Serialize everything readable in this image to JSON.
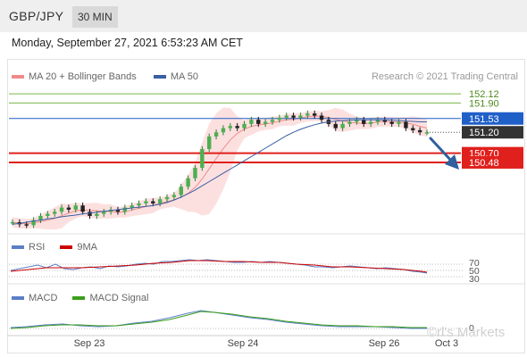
{
  "header": {
    "pair": "GBP/JPY",
    "timeframe": "30 MIN"
  },
  "datetime": "Monday, September 27, 2021 6:53:23 AM CET",
  "copyright": "Research © 2021 Trading Central",
  "legend_main": [
    {
      "label": "MA 20 + Bollinger Bands",
      "color": "#f08a8a"
    },
    {
      "label": "MA 50",
      "color": "#3a5fa5"
    }
  ],
  "legend_rsi": [
    {
      "label": "RSI",
      "color": "#5b7fc7"
    },
    {
      "label": "9MA",
      "color": "#cc0000"
    }
  ],
  "legend_macd": [
    {
      "label": "MACD",
      "color": "#5b7fc7"
    },
    {
      "label": "MACD Signal",
      "color": "#3a9e1a"
    }
  ],
  "price_levels": [
    {
      "label": "152.12",
      "value": 152.12,
      "kind": "target",
      "color": "#7ab648"
    },
    {
      "label": "151.90",
      "value": 151.9,
      "kind": "target",
      "color": "#7ab648"
    },
    {
      "label": "151.53",
      "value": 151.53,
      "kind": "pivot",
      "color": "#1f5fc8"
    },
    {
      "label": "151.20",
      "value": 151.2,
      "kind": "last",
      "color": "#333333"
    },
    {
      "label": "150.70",
      "value": 150.7,
      "kind": "support",
      "color": "#e0201c"
    },
    {
      "label": "150.48",
      "value": 150.48,
      "kind": "support",
      "color": "#e0201c"
    }
  ],
  "rsi_levels": [
    "70",
    "50",
    "30"
  ],
  "macd_level": "0",
  "x_labels": [
    "Sep 23",
    "Sep 24",
    "Sep 26",
    "Oct 3"
  ],
  "watermark": "©rl's Markets",
  "chart_data": {
    "type": "line",
    "title": "GBP/JPY",
    "ylim": [
      148.9,
      152.4
    ],
    "series": [
      {
        "name": "GBP/JPY",
        "values": [
          149.05,
          149.0,
          148.98,
          149.1,
          149.2,
          149.25,
          149.3,
          149.4,
          149.35,
          149.45,
          149.3,
          149.2,
          149.25,
          149.3,
          149.35,
          149.3,
          149.4,
          149.45,
          149.5,
          149.55,
          149.5,
          149.6,
          149.65,
          149.7,
          149.9,
          150.1,
          150.35,
          150.8,
          151.1,
          151.2,
          151.3,
          151.35,
          151.3,
          151.4,
          151.5,
          151.4,
          151.45,
          151.5,
          151.55,
          151.6,
          151.55,
          151.6,
          151.65,
          151.6,
          151.5,
          151.4,
          151.3,
          151.4,
          151.45,
          151.5,
          151.4,
          151.45,
          151.5,
          151.45,
          151.4,
          151.45,
          151.3,
          151.25,
          151.2,
          151.2
        ]
      },
      {
        "name": "MA 50",
        "values": [
          149.0,
          149.02,
          149.05,
          149.08,
          149.1,
          149.13,
          149.15,
          149.18,
          149.2,
          149.22,
          149.25,
          149.27,
          149.29,
          149.31,
          149.33,
          149.35,
          149.37,
          149.39,
          149.41,
          149.43,
          149.45,
          149.48,
          149.52,
          149.58,
          149.65,
          149.73,
          149.82,
          149.92,
          150.02,
          150.12,
          150.22,
          150.32,
          150.42,
          150.52,
          150.62,
          150.72,
          150.82,
          150.92,
          151.02,
          151.12,
          151.2,
          151.27,
          151.33,
          151.38,
          151.42,
          151.45,
          151.47,
          151.48,
          151.49,
          151.5,
          151.5,
          151.5,
          151.5,
          151.5,
          151.49,
          151.48,
          151.47,
          151.46,
          151.45,
          151.45
        ]
      }
    ],
    "rsi": {
      "levels": [
        70,
        50,
        30
      ]
    },
    "macd": {
      "zero": 0
    }
  }
}
